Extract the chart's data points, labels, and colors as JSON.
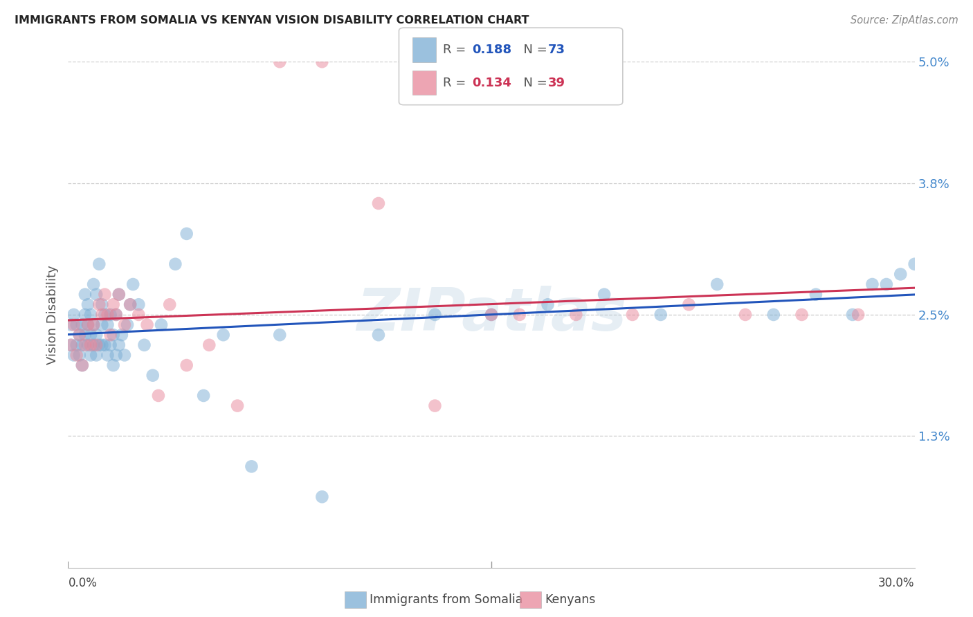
{
  "title": "IMMIGRANTS FROM SOMALIA VS KENYAN VISION DISABILITY CORRELATION CHART",
  "source": "Source: ZipAtlas.com",
  "ylabel": "Vision Disability",
  "x_min": 0.0,
  "x_max": 0.3,
  "y_min": 0.0,
  "y_max": 0.05,
  "yticks": [
    0.013,
    0.025,
    0.038,
    0.05
  ],
  "ytick_labels": [
    "1.3%",
    "2.5%",
    "3.8%",
    "5.0%"
  ],
  "watermark": "ZIPatlas",
  "legend_label1": "Immigrants from Somalia",
  "legend_label2": "Kenyans",
  "blue_color": "#7aadd4",
  "pink_color": "#e8879a",
  "line_blue": "#2255bb",
  "line_pink": "#cc3355",
  "som_x": [
    0.001,
    0.001,
    0.002,
    0.002,
    0.003,
    0.003,
    0.004,
    0.004,
    0.005,
    0.005,
    0.005,
    0.006,
    0.006,
    0.006,
    0.007,
    0.007,
    0.007,
    0.008,
    0.008,
    0.008,
    0.009,
    0.009,
    0.009,
    0.01,
    0.01,
    0.01,
    0.011,
    0.011,
    0.012,
    0.012,
    0.012,
    0.013,
    0.013,
    0.014,
    0.014,
    0.015,
    0.015,
    0.016,
    0.016,
    0.017,
    0.017,
    0.018,
    0.018,
    0.019,
    0.02,
    0.021,
    0.022,
    0.023,
    0.025,
    0.027,
    0.03,
    0.033,
    0.038,
    0.042,
    0.048,
    0.055,
    0.065,
    0.075,
    0.09,
    0.11,
    0.13,
    0.15,
    0.17,
    0.19,
    0.21,
    0.23,
    0.25,
    0.265,
    0.278,
    0.285,
    0.29,
    0.295,
    0.3
  ],
  "som_y": [
    0.022,
    0.024,
    0.021,
    0.025,
    0.022,
    0.024,
    0.021,
    0.023,
    0.022,
    0.024,
    0.02,
    0.023,
    0.025,
    0.027,
    0.022,
    0.024,
    0.026,
    0.021,
    0.023,
    0.025,
    0.022,
    0.024,
    0.028,
    0.021,
    0.023,
    0.027,
    0.022,
    0.03,
    0.022,
    0.024,
    0.026,
    0.022,
    0.025,
    0.021,
    0.024,
    0.022,
    0.025,
    0.02,
    0.023,
    0.021,
    0.025,
    0.022,
    0.027,
    0.023,
    0.021,
    0.024,
    0.026,
    0.028,
    0.026,
    0.022,
    0.019,
    0.024,
    0.03,
    0.033,
    0.017,
    0.023,
    0.01,
    0.023,
    0.007,
    0.023,
    0.025,
    0.025,
    0.026,
    0.027,
    0.025,
    0.028,
    0.025,
    0.027,
    0.025,
    0.028,
    0.028,
    0.029,
    0.03
  ],
  "ken_x": [
    0.001,
    0.002,
    0.003,
    0.004,
    0.005,
    0.006,
    0.007,
    0.008,
    0.009,
    0.01,
    0.011,
    0.012,
    0.013,
    0.014,
    0.015,
    0.016,
    0.017,
    0.018,
    0.02,
    0.022,
    0.025,
    0.028,
    0.032,
    0.036,
    0.042,
    0.05,
    0.06,
    0.075,
    0.09,
    0.11,
    0.13,
    0.15,
    0.16,
    0.18,
    0.2,
    0.22,
    0.24,
    0.26,
    0.28
  ],
  "ken_y": [
    0.022,
    0.024,
    0.021,
    0.023,
    0.02,
    0.022,
    0.024,
    0.022,
    0.024,
    0.022,
    0.026,
    0.025,
    0.027,
    0.025,
    0.023,
    0.026,
    0.025,
    0.027,
    0.024,
    0.026,
    0.025,
    0.024,
    0.017,
    0.026,
    0.02,
    0.022,
    0.016,
    0.05,
    0.05,
    0.036,
    0.016,
    0.025,
    0.025,
    0.025,
    0.025,
    0.026,
    0.025,
    0.025,
    0.025
  ]
}
